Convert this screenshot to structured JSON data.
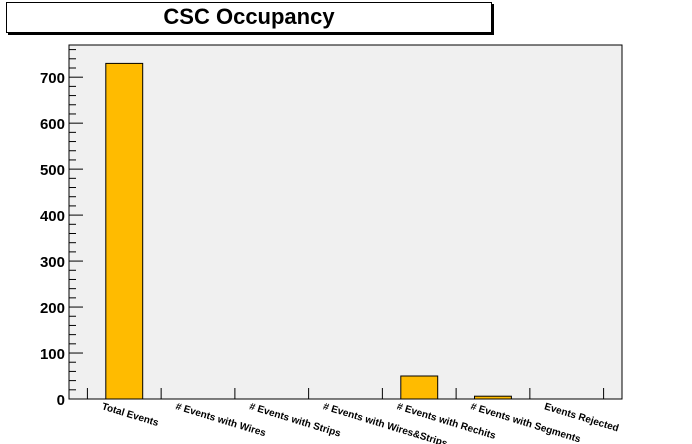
{
  "chart_data": {
    "type": "bar",
    "title": "CSC Occupancy",
    "categories": [
      "Total Events",
      "# Events with Wires",
      "# Events with Strips",
      "# Events with Wires&Strips",
      "# Events with Rechits",
      "# Events with Segments",
      "Events Rejected"
    ],
    "values": [
      730,
      0,
      0,
      0,
      50,
      6,
      0
    ],
    "ylim": [
      0,
      770
    ],
    "yticks": [
      0,
      100,
      200,
      300,
      400,
      500,
      600,
      700
    ],
    "xlabel": "",
    "ylabel": "",
    "grid": false,
    "colors": {
      "bar_fill": "#ffbb00",
      "frame_fill": "#f0f0f0",
      "bar_stroke": "#000000"
    }
  }
}
